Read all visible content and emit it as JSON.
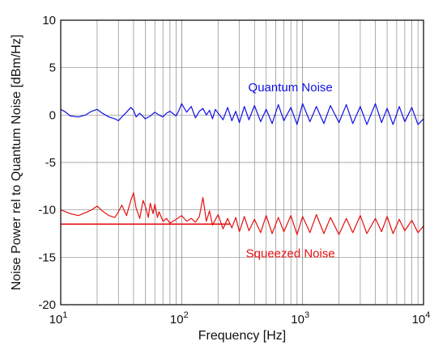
{
  "chart_data": {
    "type": "line",
    "xscale": "log",
    "xlim": [
      10,
      10000
    ],
    "ylim": [
      -20,
      10
    ],
    "grid": true,
    "xlabel": "Frequency [Hz]",
    "ylabel": "Noise Power rel to Quantum Noise [dBm/Hz]",
    "x_ticks": [
      {
        "base": "10",
        "exp": "1"
      },
      {
        "base": "10",
        "exp": "2"
      },
      {
        "base": "10",
        "exp": "3"
      },
      {
        "base": "10",
        "exp": "4"
      }
    ],
    "y_ticks": [
      "10",
      "5",
      "0",
      "-5",
      "-10",
      "-15",
      "-20"
    ],
    "series": [
      {
        "name": "Quantum Noise",
        "color": "#1010e6",
        "x": [
          10,
          11,
          12,
          14,
          16,
          18,
          20,
          22,
          25,
          28,
          30,
          32,
          35,
          38,
          40,
          42,
          45,
          50,
          55,
          60,
          65,
          70,
          75,
          80,
          90,
          95,
          100,
          110,
          120,
          130,
          140,
          150,
          160,
          170,
          180,
          190,
          200,
          220,
          240,
          260,
          280,
          300,
          330,
          360,
          400,
          450,
          500,
          560,
          630,
          700,
          800,
          900,
          1000,
          1150,
          1300,
          1500,
          1700,
          2000,
          2300,
          2600,
          3000,
          3400,
          4000,
          4500,
          5000,
          5600,
          6300,
          7000,
          8000,
          9000,
          10000
        ],
        "values": [
          0.6,
          0.3,
          -0.1,
          -0.2,
          0.0,
          0.4,
          0.6,
          0.2,
          -0.2,
          -0.4,
          -0.6,
          -0.2,
          0.3,
          0.8,
          0.5,
          -0.2,
          0.2,
          -0.4,
          -0.1,
          0.3,
          0.0,
          -0.2,
          0.2,
          0.4,
          -0.1,
          0.5,
          1.2,
          0.3,
          0.9,
          -0.3,
          0.4,
          0.7,
          0.0,
          0.5,
          -0.4,
          0.6,
          0.2,
          -0.5,
          0.8,
          -0.6,
          0.4,
          -0.8,
          0.9,
          -0.5,
          1.0,
          -0.7,
          0.6,
          -0.9,
          1.1,
          -0.6,
          0.8,
          -1.0,
          1.2,
          -0.7,
          0.9,
          -0.9,
          1.0,
          -0.8,
          1.1,
          -0.9,
          0.9,
          -1.0,
          1.2,
          -0.8,
          0.7,
          -1.0,
          0.9,
          -0.7,
          0.8,
          -1.0,
          -0.4
        ]
      },
      {
        "name": "Squeezed Noise",
        "color": "#e61010",
        "x": [
          10,
          11,
          12,
          14,
          16,
          18,
          20,
          22,
          25,
          28,
          30,
          32,
          35,
          38,
          40,
          42,
          45,
          48,
          50,
          53,
          55,
          58,
          60,
          63,
          65,
          70,
          75,
          80,
          90,
          100,
          110,
          120,
          130,
          140,
          150,
          160,
          170,
          180,
          200,
          220,
          240,
          260,
          280,
          300,
          330,
          360,
          400,
          450,
          500,
          560,
          630,
          700,
          800,
          900,
          1000,
          1150,
          1300,
          1500,
          1700,
          2000,
          2300,
          2600,
          3000,
          3400,
          4000,
          4500,
          5000,
          5600,
          6300,
          7000,
          8000,
          9000,
          10000
        ],
        "values": [
          -10.0,
          -10.2,
          -10.4,
          -10.6,
          -10.3,
          -10.0,
          -9.6,
          -10.1,
          -10.6,
          -10.8,
          -10.2,
          -9.5,
          -10.6,
          -9.0,
          -8.2,
          -9.8,
          -10.9,
          -9.0,
          -9.6,
          -10.8,
          -9.3,
          -10.4,
          -9.4,
          -10.8,
          -10.2,
          -11.2,
          -10.9,
          -11.4,
          -11.0,
          -10.6,
          -11.2,
          -10.9,
          -11.3,
          -10.7,
          -8.7,
          -11.2,
          -10.1,
          -11.6,
          -10.5,
          -12.0,
          -10.9,
          -11.9,
          -10.8,
          -12.3,
          -10.7,
          -12.2,
          -11.0,
          -12.4,
          -10.6,
          -12.5,
          -10.8,
          -12.3,
          -10.6,
          -12.6,
          -10.7,
          -12.4,
          -10.5,
          -12.5,
          -10.8,
          -12.6,
          -10.9,
          -12.4,
          -10.6,
          -12.5,
          -10.9,
          -12.3,
          -10.7,
          -12.5,
          -11.0,
          -12.2,
          -11.1,
          -12.4,
          -11.7
        ]
      }
    ],
    "reference_lines": [
      {
        "color": "#e61010",
        "y": -11.5,
        "x": [
          10,
          250
        ]
      }
    ],
    "annotations": [
      {
        "text": "Quantum Noise",
        "color": "#1010e6",
        "x": 1000,
        "y": 2.5
      },
      {
        "text": "Squeezed Noise",
        "color": "#e61010",
        "x": 1000,
        "y": -15
      }
    ]
  }
}
